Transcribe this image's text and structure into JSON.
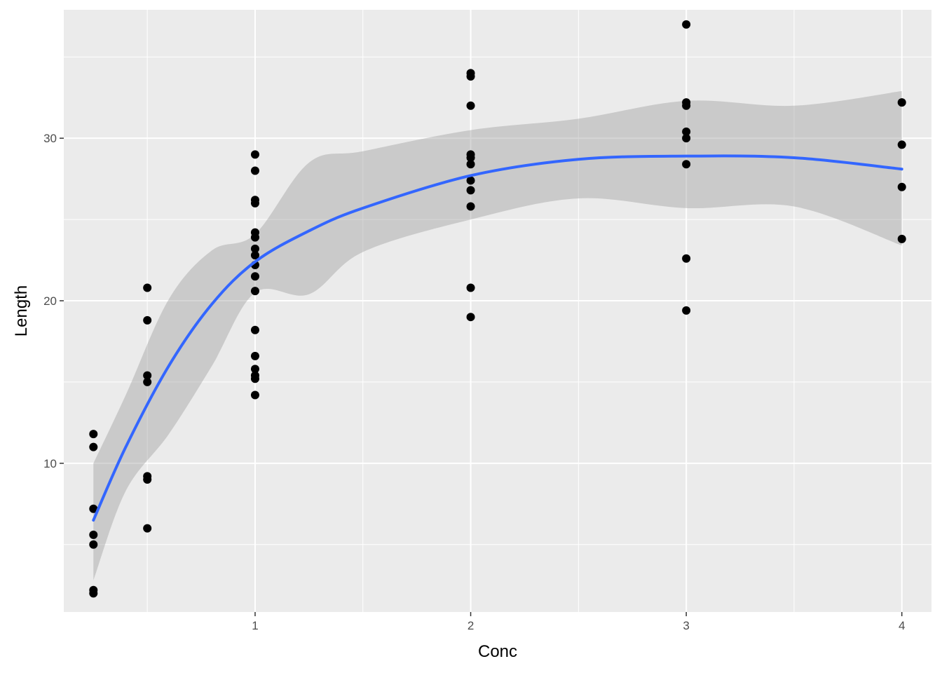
{
  "chart_data": {
    "type": "scatter",
    "xlabel": "Conc",
    "ylabel": "Length",
    "xlim": [
      0.1125,
      4.1375
    ],
    "ylim": [
      0.85,
      37.9
    ],
    "x_ticks": [
      1,
      2,
      3,
      4
    ],
    "x_tick_labels": [
      "1",
      "2",
      "3",
      "4"
    ],
    "x_minor_ticks": [
      0.5,
      1.5,
      2.5,
      3.5
    ],
    "y_ticks": [
      10,
      20,
      30
    ],
    "y_tick_labels": [
      "10",
      "20",
      "30"
    ],
    "y_minor_ticks": [
      5,
      15,
      25,
      35
    ],
    "grid": true,
    "legend": "none",
    "colors": {
      "panel": "#ebebeb",
      "grid": "#ffffff",
      "points": "#000000",
      "smooth_line": "#3366ff",
      "ribbon": "#999999"
    },
    "points": [
      {
        "x": 0.25,
        "y": 11.8
      },
      {
        "x": 0.25,
        "y": 11.0
      },
      {
        "x": 0.25,
        "y": 7.2
      },
      {
        "x": 0.25,
        "y": 5.6
      },
      {
        "x": 0.25,
        "y": 5.0
      },
      {
        "x": 0.25,
        "y": 2.2
      },
      {
        "x": 0.25,
        "y": 2.0
      },
      {
        "x": 0.5,
        "y": 20.8
      },
      {
        "x": 0.5,
        "y": 18.8
      },
      {
        "x": 0.5,
        "y": 15.4
      },
      {
        "x": 0.5,
        "y": 15.0
      },
      {
        "x": 0.5,
        "y": 9.2
      },
      {
        "x": 0.5,
        "y": 9.0
      },
      {
        "x": 0.5,
        "y": 6.0
      },
      {
        "x": 1,
        "y": 29.0
      },
      {
        "x": 1,
        "y": 28.0
      },
      {
        "x": 1,
        "y": 26.2
      },
      {
        "x": 1,
        "y": 26.0
      },
      {
        "x": 1,
        "y": 24.2
      },
      {
        "x": 1,
        "y": 23.9
      },
      {
        "x": 1,
        "y": 23.2
      },
      {
        "x": 1,
        "y": 22.8
      },
      {
        "x": 1,
        "y": 22.2
      },
      {
        "x": 1,
        "y": 21.5
      },
      {
        "x": 1,
        "y": 20.6
      },
      {
        "x": 1,
        "y": 18.2
      },
      {
        "x": 1,
        "y": 16.6
      },
      {
        "x": 1,
        "y": 15.8
      },
      {
        "x": 1,
        "y": 15.4
      },
      {
        "x": 1,
        "y": 15.2
      },
      {
        "x": 1,
        "y": 14.2
      },
      {
        "x": 2,
        "y": 34.0
      },
      {
        "x": 2,
        "y": 33.8
      },
      {
        "x": 2,
        "y": 32.0
      },
      {
        "x": 2,
        "y": 29.0
      },
      {
        "x": 2,
        "y": 28.8
      },
      {
        "x": 2,
        "y": 28.4
      },
      {
        "x": 2,
        "y": 27.4
      },
      {
        "x": 2,
        "y": 26.8
      },
      {
        "x": 2,
        "y": 25.8
      },
      {
        "x": 2,
        "y": 20.8
      },
      {
        "x": 2,
        "y": 19.0
      },
      {
        "x": 3,
        "y": 37.0
      },
      {
        "x": 3,
        "y": 32.2
      },
      {
        "x": 3,
        "y": 32.0
      },
      {
        "x": 3,
        "y": 30.4
      },
      {
        "x": 3,
        "y": 30.0
      },
      {
        "x": 3,
        "y": 28.4
      },
      {
        "x": 3,
        "y": 22.6
      },
      {
        "x": 3,
        "y": 19.4
      },
      {
        "x": 4,
        "y": 32.2
      },
      {
        "x": 4,
        "y": 29.6
      },
      {
        "x": 4,
        "y": 27.0
      },
      {
        "x": 4,
        "y": 23.8
      }
    ],
    "smooth": {
      "x": [
        0.25,
        0.4,
        0.6,
        0.8,
        1.0,
        1.25,
        1.5,
        2.0,
        2.5,
        3.0,
        3.5,
        4.0
      ],
      "y": [
        6.5,
        11.0,
        16.0,
        19.8,
        22.4,
        24.3,
        25.7,
        27.7,
        28.7,
        28.9,
        28.8,
        28.1
      ],
      "lower": [
        2.8,
        8.3,
        11.8,
        16.0,
        20.5,
        20.4,
        23.0,
        25.0,
        26.3,
        25.7,
        25.8,
        23.4
      ],
      "upper": [
        10.0,
        14.2,
        20.1,
        23.1,
        24.1,
        28.5,
        29.2,
        30.5,
        31.2,
        32.3,
        32.0,
        32.9
      ]
    }
  }
}
